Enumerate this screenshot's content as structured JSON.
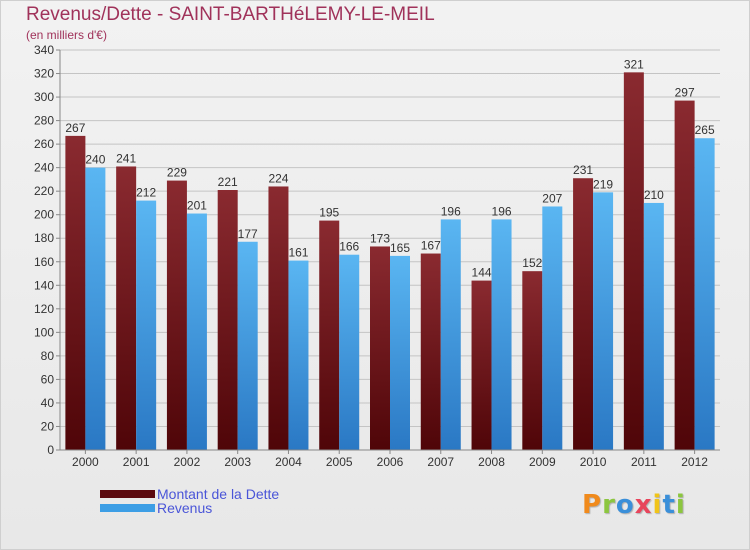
{
  "chart_data": {
    "type": "bar",
    "title": "Revenus/Dette - SAINT-BARTHéLEMY-LE-MEIL",
    "subtitle": "(en milliers d'€)",
    "categories": [
      "2000",
      "2001",
      "2002",
      "2003",
      "2004",
      "2005",
      "2006",
      "2007",
      "2008",
      "2009",
      "2010",
      "2011",
      "2012"
    ],
    "series": [
      {
        "name": "Montant de la Dette",
        "color": "#7a1f24",
        "values": [
          267,
          241,
          229,
          221,
          224,
          195,
          173,
          167,
          144,
          152,
          231,
          321,
          297
        ]
      },
      {
        "name": "Revenus",
        "color": "#3d9ee5",
        "values": [
          240,
          212,
          201,
          177,
          161,
          166,
          165,
          196,
          196,
          207,
          219,
          210,
          265
        ]
      }
    ],
    "ylim": [
      0,
      340
    ],
    "yticks": [
      0,
      20,
      40,
      60,
      80,
      100,
      120,
      140,
      160,
      180,
      200,
      220,
      240,
      260,
      280,
      300,
      320,
      340
    ],
    "grid": true,
    "legend_position": "bottom-left"
  },
  "legend": {
    "items": [
      {
        "label": "Montant de la Dette",
        "color": "#5c0a0f"
      },
      {
        "label": "Revenus",
        "color": "#3d9ee5"
      }
    ]
  },
  "logo": {
    "text": "Proxiti",
    "colors": [
      "#f08a1c",
      "#8cc63f",
      "#3a8fd9",
      "#e8455c",
      "#f0c419",
      "#3a8fd9",
      "#8cc63f"
    ]
  }
}
